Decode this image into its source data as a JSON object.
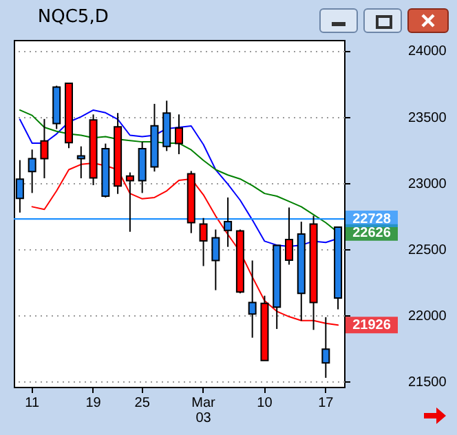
{
  "chart_data": {
    "type": "candlestick",
    "title": "NQC5,D",
    "categories": [
      null,
      "11",
      null,
      null,
      null,
      null,
      "19",
      null,
      null,
      null,
      "25",
      null,
      null,
      null,
      null,
      "Mar\n03",
      null,
      null,
      null,
      null,
      "10",
      null,
      null,
      null,
      null,
      "17",
      null
    ],
    "ohlc": [
      [
        22883,
        23172,
        22776,
        23028
      ],
      [
        23086,
        23252,
        22924,
        23183
      ],
      [
        23317,
        23483,
        23035,
        23183
      ],
      [
        23448,
        23734,
        23407,
        23724
      ],
      [
        23752,
        23752,
        23262,
        23304
      ],
      [
        23183,
        23276,
        23035,
        23204
      ],
      [
        23476,
        23517,
        22983,
        23038
      ],
      [
        22900,
        23297,
        22890,
        23259
      ],
      [
        23424,
        23528,
        22917,
        22976
      ],
      [
        23052,
        23079,
        22631,
        23017
      ],
      [
        23017,
        23310,
        22924,
        23259
      ],
      [
        23121,
        23597,
        23086,
        23431
      ],
      [
        23276,
        23621,
        23241,
        23528
      ],
      [
        23414,
        23517,
        23217,
        23297
      ],
      [
        23069,
        23090,
        22621,
        22700
      ],
      [
        22690,
        22735,
        22372,
        22562
      ],
      [
        22414,
        22648,
        22190,
        22586
      ],
      [
        22641,
        22890,
        22517,
        22707
      ],
      [
        22638,
        22648,
        22166,
        22176
      ],
      [
        22010,
        22414,
        21831,
        22097
      ],
      [
        22090,
        22148,
        21659,
        21659
      ],
      [
        22062,
        22528,
        21897,
        22528
      ],
      [
        22572,
        22814,
        22383,
        22417
      ],
      [
        22166,
        22707,
        21959,
        22614
      ],
      [
        22690,
        22752,
        21890,
        22097
      ],
      [
        21641,
        21986,
        21528,
        21745
      ],
      [
        22131,
        22666,
        22045,
        22666
      ]
    ],
    "colors": [
      "#1e7ee8",
      "#1e7ee8",
      "#ff0000",
      "#1e7ee8",
      "#ff0000",
      "#1e7ee8",
      "#ff0000",
      "#1e7ee8",
      "#ff0000",
      "#ff0000",
      "#1e7ee8",
      "#1e7ee8",
      "#1e7ee8",
      "#ff0000",
      "#ff0000",
      "#ff0000",
      "#1e7ee8",
      "#1e7ee8",
      "#ff0000",
      "#1e7ee8",
      "#ff0000",
      "#1e7ee8",
      "#ff0000",
      "#1e7ee8",
      "#ff0000",
      "#1e7ee8",
      "#1e7ee8"
    ],
    "series": [
      {
        "type": "line",
        "color": "#0000ff",
        "values": [
          23480,
          23300,
          23300,
          23370,
          23460,
          23500,
          23550,
          23530,
          23480,
          23360,
          23350,
          23360,
          23410,
          23420,
          23430,
          23290,
          23100,
          22990,
          22870,
          22720,
          22560,
          22530,
          22520,
          22530,
          22560,
          22550,
          22580
        ]
      },
      {
        "type": "line",
        "color": "#008000",
        "values": [
          23550,
          23510,
          23420,
          23390,
          23370,
          23360,
          23340,
          23350,
          23330,
          23320,
          23310,
          23310,
          23300,
          23300,
          23250,
          23170,
          23100,
          23060,
          23030,
          22980,
          22920,
          22900,
          22860,
          22820,
          22760,
          22700,
          22626
        ],
        "value_labels": [
          null,
          null,
          null,
          null,
          null,
          null,
          null,
          null,
          null,
          null,
          null,
          null,
          null,
          null,
          null,
          null,
          null,
          null,
          null,
          null,
          null,
          null,
          null,
          null,
          null,
          null,
          "22626"
        ]
      },
      {
        "type": "line",
        "color": "#ff0000",
        "values": [
          null,
          22820,
          22800,
          22940,
          23100,
          23140,
          23150,
          23130,
          23100,
          22920,
          22880,
          22890,
          22940,
          23020,
          23030,
          22910,
          22750,
          22610,
          22480,
          22290,
          22110,
          22030,
          21990,
          21960,
          21960,
          21940,
          21926
        ],
        "value_labels": [
          null,
          null,
          null,
          null,
          null,
          null,
          null,
          null,
          null,
          null,
          null,
          null,
          null,
          null,
          null,
          null,
          null,
          null,
          null,
          null,
          null,
          null,
          null,
          null,
          null,
          null,
          "21926"
        ]
      }
    ],
    "ref_lines": [
      {
        "axis": "y",
        "value": 22728,
        "label": "22728",
        "color": "#1e90ff"
      }
    ],
    "ylim": [
      21460,
      24080
    ],
    "yticks": [
      21500,
      22000,
      22500,
      23000,
      23500,
      24000
    ],
    "grid": "y"
  }
}
